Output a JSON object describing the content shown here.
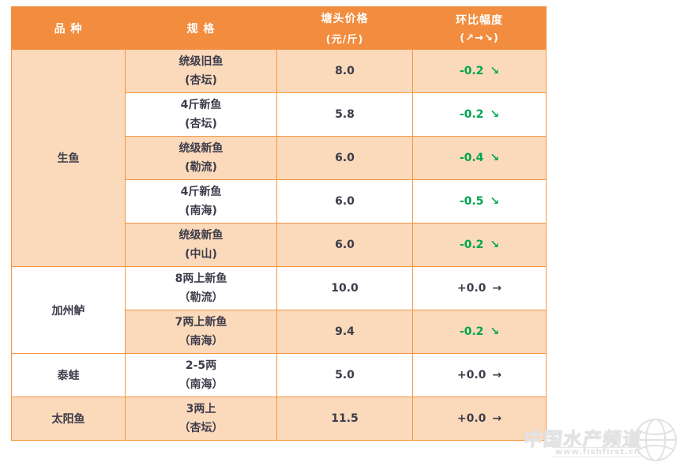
{
  "table": {
    "header": {
      "col1": "品 种",
      "col2": "规 格",
      "col3_line1": "塘头价格",
      "col3_line2": "(元/斤)",
      "col4_line1": "环比幅度",
      "col4_line2": "(↗→↘)"
    },
    "species_groups": [
      {
        "name": "生鱼",
        "shade": "light",
        "rows": [
          {
            "spec": "统级旧鱼",
            "origin": "(杏坛)",
            "price": "8.0",
            "change": "-0.2",
            "trend": "down",
            "shade": "light"
          },
          {
            "spec": "4斤新鱼",
            "origin": "(杏坛)",
            "price": "5.8",
            "change": "-0.2",
            "trend": "down",
            "shade": "white"
          },
          {
            "spec": "统级新鱼",
            "origin": "(勒流)",
            "price": "6.0",
            "change": "-0.4",
            "trend": "down",
            "shade": "light"
          },
          {
            "spec": "4斤新鱼",
            "origin": "(南海)",
            "price": "6.0",
            "change": "-0.5",
            "trend": "down",
            "shade": "white"
          },
          {
            "spec": "统级新鱼",
            "origin": "(中山)",
            "price": "6.0",
            "change": "-0.2",
            "trend": "down",
            "shade": "light"
          }
        ]
      },
      {
        "name": "加州鲈",
        "shade": "white",
        "rows": [
          {
            "spec": "8两上新鱼",
            "origin": "（勒流）",
            "price": "10.0",
            "change": "+0.0",
            "trend": "flat",
            "shade": "white"
          },
          {
            "spec": "7两上新鱼",
            "origin": "（南海）",
            "price": "9.4",
            "change": "-0.2",
            "trend": "down",
            "shade": "light"
          }
        ]
      },
      {
        "name": "泰蛙",
        "shade": "white",
        "rows": [
          {
            "spec": "2-5两",
            "origin": "（南海）",
            "price": "5.0",
            "change": "+0.0",
            "trend": "flat",
            "shade": "white"
          }
        ]
      },
      {
        "name": "太阳鱼",
        "shade": "light",
        "rows": [
          {
            "spec": "3两上",
            "origin": "（杏坛）",
            "price": "11.5",
            "change": "+0.0",
            "trend": "flat",
            "shade": "light"
          }
        ]
      }
    ]
  },
  "trend_arrows": {
    "down": "↘",
    "flat": "→",
    "up": "↗"
  },
  "colors": {
    "header_bg": "#F28C3E",
    "row_light": "#FBD9BB",
    "border": "#F5963F",
    "green": "#00A650",
    "text_dark": "#3C3C4A"
  },
  "watermark": {
    "title": "中国水产频道",
    "url": "www.fishfirst.cn"
  },
  "chart_data": {
    "type": "table",
    "title": "塘头价格表",
    "columns": [
      "品种",
      "规格",
      "塘头价格(元/斤)",
      "环比幅度(↗→↘)"
    ],
    "rows": [
      [
        "生鱼",
        "统级旧鱼 (杏坛)",
        8.0,
        "-0.2 ↘"
      ],
      [
        "生鱼",
        "4斤新鱼 (杏坛)",
        5.8,
        "-0.2 ↘"
      ],
      [
        "生鱼",
        "统级新鱼 (勒流)",
        6.0,
        "-0.4 ↘"
      ],
      [
        "生鱼",
        "4斤新鱼 (南海)",
        6.0,
        "-0.5 ↘"
      ],
      [
        "生鱼",
        "统级新鱼 (中山)",
        6.0,
        "-0.2 ↘"
      ],
      [
        "加州鲈",
        "8两上新鱼 （勒流）",
        10.0,
        "+0.0 →"
      ],
      [
        "加州鲈",
        "7两上新鱼 （南海）",
        9.4,
        "-0.2 ↘"
      ],
      [
        "泰蛙",
        "2-5两 （南海）",
        5.0,
        "+0.0 →"
      ],
      [
        "太阳鱼",
        "3两上 （杏坛）",
        11.5,
        "+0.0 →"
      ]
    ]
  }
}
